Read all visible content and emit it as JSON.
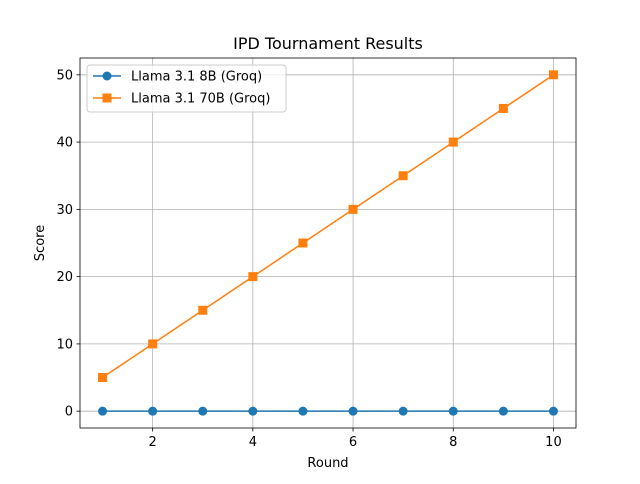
{
  "chart_data": {
    "type": "line",
    "title": "IPD Tournament Results",
    "xlabel": "Round",
    "ylabel": "Score",
    "x": [
      1,
      2,
      3,
      4,
      5,
      6,
      7,
      8,
      9,
      10
    ],
    "xlim": [
      0.55,
      10.45
    ],
    "ylim": [
      -2.5,
      52.5
    ],
    "xticks": [
      2,
      4,
      6,
      8,
      10
    ],
    "yticks": [
      0,
      10,
      20,
      30,
      40,
      50
    ],
    "grid": true,
    "legend_position": "top-left",
    "series": [
      {
        "name": "Llama 3.1 8B (Groq)",
        "color": "#1f77b4",
        "marker": "circle",
        "values": [
          0,
          0,
          0,
          0,
          0,
          0,
          0,
          0,
          0,
          0
        ]
      },
      {
        "name": "Llama 3.1 70B (Groq)",
        "color": "#ff7f0e",
        "marker": "square",
        "values": [
          5,
          10,
          15,
          20,
          25,
          30,
          35,
          40,
          45,
          50
        ]
      }
    ]
  }
}
